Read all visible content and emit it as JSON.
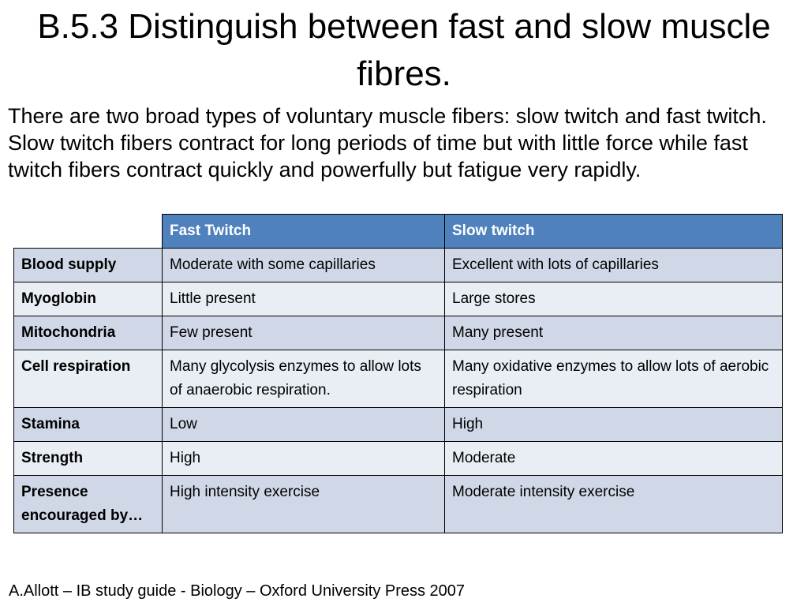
{
  "title": "B.5.3 Distinguish between fast and slow muscle fibres.",
  "intro": "There are two broad types of voluntary muscle fibers: slow twitch and fast twitch. Slow twitch fibers contract for long periods of time but with little force while fast twitch fibers contract quickly and powerfully but fatigue very rapidly.",
  "table": {
    "columns": [
      "",
      "Fast Twitch",
      "Slow twitch"
    ],
    "rows": [
      {
        "label": "Blood supply",
        "fast": "Moderate with some capillaries",
        "slow": "Excellent with lots of capillaries"
      },
      {
        "label": "Myoglobin",
        "fast": "Little present",
        "slow": "Large stores"
      },
      {
        "label": "Mitochondria",
        "fast": "Few present",
        "slow": "Many present"
      },
      {
        "label": "Cell respiration",
        "fast": "Many glycolysis enzymes to allow lots of anaerobic respiration.",
        "slow": "Many oxidative enzymes to allow lots of aerobic respiration"
      },
      {
        "label": "Stamina",
        "fast": "Low",
        "slow": "High"
      },
      {
        "label": "Strength",
        "fast": "High",
        "slow": "Moderate"
      },
      {
        "label": "Presence encouraged by…",
        "fast": "High intensity exercise",
        "slow": "Moderate intensity exercise"
      }
    ]
  },
  "source": "A.Allott – IB study guide -  Biology – Oxford University Press 2007",
  "colors": {
    "header_bg": "#4f81bd",
    "row_odd_bg": "#d0d8e8",
    "row_even_bg": "#e9edf4"
  }
}
